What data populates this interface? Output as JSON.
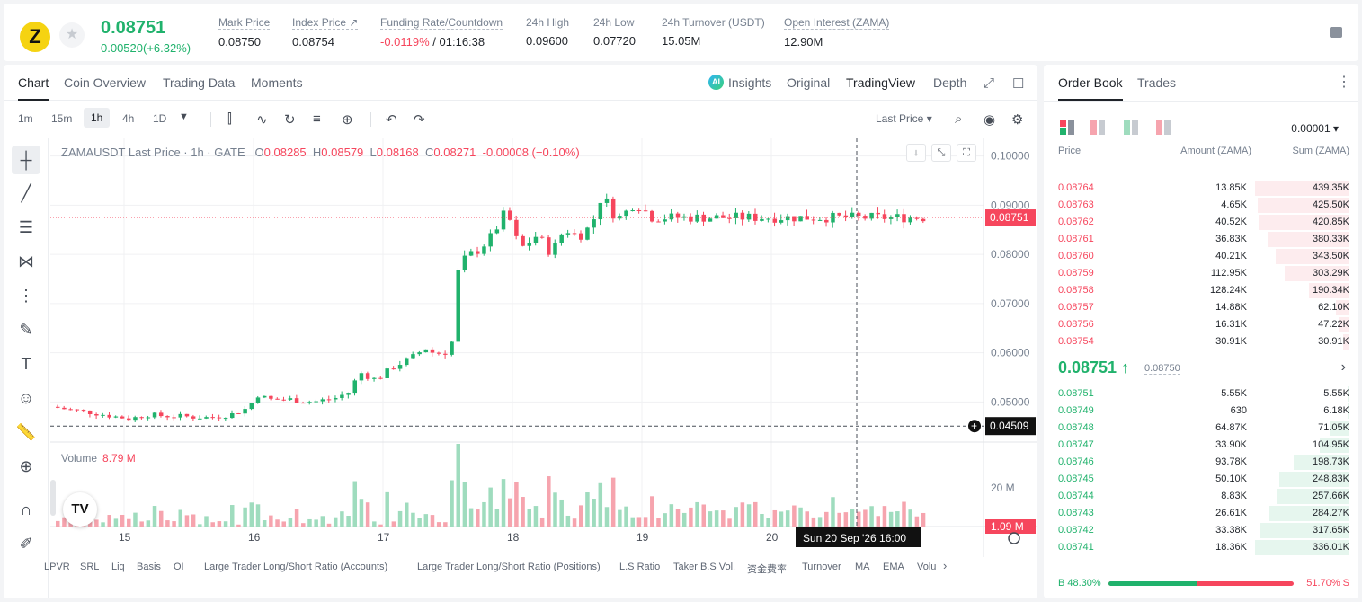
{
  "header": {
    "logo_letter": "Z",
    "last_price": "0.08751",
    "change": "0.00520(+6.32%)",
    "stats": [
      {
        "label": "Mark Price",
        "value": "0.08750"
      },
      {
        "label": "Index Price ↗",
        "value": "0.08754"
      },
      {
        "label": "Funding Rate/Countdown",
        "value_neg": "-0.0119%",
        "value": " / 01:16:38"
      },
      {
        "label": "24h High",
        "value": "0.09600"
      },
      {
        "label": "24h Low",
        "value": "0.07720"
      },
      {
        "label": "24h Turnover (USDT)",
        "value": "15.05M"
      },
      {
        "label": "Open Interest (ZAMA)",
        "value": "12.90M"
      }
    ]
  },
  "chart_tabs": [
    "Chart",
    "Coin Overview",
    "Trading Data",
    "Moments"
  ],
  "view_tabs": [
    "Insights",
    "Original",
    "TradingView",
    "Depth"
  ],
  "ai_badge": "AI",
  "timeframes": [
    "1m",
    "15m",
    "1h",
    "4h",
    "1D"
  ],
  "price_type": "Last Price ▾",
  "ohlc": {
    "title": "ZAMAUSDT Last Price · 1h · GATE",
    "o_lbl": "O",
    "o": "0.08285",
    "h_lbl": "H",
    "h": "0.08579",
    "l_lbl": "L",
    "l": "0.08168",
    "c_lbl": "C",
    "c": "0.08271",
    "chg": "-0.00008 (−0.10%)"
  },
  "volume": {
    "label": "Volume",
    "value": "8.79 M",
    "axis_label": "20 M",
    "tag": "1.09 M"
  },
  "tv_logo": "TV",
  "bottom_indicators": [
    "LPVR",
    "SRL",
    "Liq",
    "Basis",
    "OI",
    "Large Trader Long/Short Ratio (Accounts)",
    "Large Trader Long/Short Ratio (Positions)",
    "L.S Ratio",
    "Taker B.S Vol.",
    "资金费率",
    "Turnover",
    "MA",
    "EMA",
    "Volu"
  ],
  "chart_data": {
    "type": "candlestick",
    "title": "ZAMAUSDT Last Price · 1h · GATE",
    "x_ticks": [
      "15",
      "16",
      "17",
      "18",
      "19",
      "20"
    ],
    "y_ticks": [
      "0.10000",
      "0.09000",
      "0.08000",
      "0.07000",
      "0.06000",
      "0.05000"
    ],
    "ylim": [
      0.0433,
      0.1025
    ],
    "last_price_tag": "0.08751",
    "crosshair_price_tag": "0.04509",
    "crosshair_time": "Sun 20 Sep '26   16:00",
    "colors": {
      "up": "#20b26c",
      "down": "#f6465d",
      "up_vol": "#9fdcbe",
      "down_vol": "#f6a4ae"
    },
    "anchors": [
      [
        0,
        0.049
      ],
      [
        20,
        0.0484
      ],
      [
        45,
        0.0478
      ],
      [
        70,
        0.047
      ],
      [
        88,
        0.0466
      ],
      [
        105,
        0.0474
      ],
      [
        120,
        0.0472
      ],
      [
        150,
        0.047
      ],
      [
        175,
        0.0468
      ],
      [
        200,
        0.0475
      ],
      [
        218,
        0.0488
      ],
      [
        228,
        0.0515
      ],
      [
        240,
        0.0505
      ],
      [
        265,
        0.0505
      ],
      [
        290,
        0.05
      ],
      [
        315,
        0.0508
      ],
      [
        330,
        0.052
      ],
      [
        342,
        0.056
      ],
      [
        360,
        0.0545
      ],
      [
        380,
        0.0572
      ],
      [
        400,
        0.059
      ],
      [
        415,
        0.061
      ],
      [
        425,
        0.0598
      ],
      [
        440,
        0.0602
      ],
      [
        445,
        0.0625
      ],
      [
        450,
        0.0758
      ],
      [
        460,
        0.0795
      ],
      [
        475,
        0.081
      ],
      [
        490,
        0.084
      ],
      [
        505,
        0.089
      ],
      [
        520,
        0.081
      ],
      [
        540,
        0.084
      ],
      [
        555,
        0.08
      ],
      [
        565,
        0.084
      ],
      [
        575,
        0.085
      ],
      [
        585,
        0.0835
      ],
      [
        600,
        0.086
      ],
      [
        612,
        0.0925
      ],
      [
        622,
        0.0885
      ],
      [
        632,
        0.0875
      ],
      [
        648,
        0.0905
      ],
      [
        658,
        0.0892
      ],
      [
        664,
        0.0878
      ],
      [
        668,
        0.0875
      ]
    ],
    "candle_count": 135,
    "volume_max": 20.0
  },
  "orderbook": {
    "tabs": [
      "Order Book",
      "Trades"
    ],
    "precision": "0.00001 ▾",
    "headers": {
      "price": "Price",
      "amount": "Amount (ZAMA)",
      "sum": "Sum (ZAMA)"
    },
    "asks": [
      {
        "price": "0.08764",
        "amount": "13.85K",
        "sum": "439.35K",
        "depth": 1.0
      },
      {
        "price": "0.08763",
        "amount": "4.65K",
        "sum": "425.50K",
        "depth": 0.97
      },
      {
        "price": "0.08762",
        "amount": "40.52K",
        "sum": "420.85K",
        "depth": 0.96
      },
      {
        "price": "0.08761",
        "amount": "36.83K",
        "sum": "380.33K",
        "depth": 0.87
      },
      {
        "price": "0.08760",
        "amount": "40.21K",
        "sum": "343.50K",
        "depth": 0.78
      },
      {
        "price": "0.08759",
        "amount": "112.95K",
        "sum": "303.29K",
        "depth": 0.69
      },
      {
        "price": "0.08758",
        "amount": "128.24K",
        "sum": "190.34K",
        "depth": 0.43
      },
      {
        "price": "0.08757",
        "amount": "14.88K",
        "sum": "62.10K",
        "depth": 0.14
      },
      {
        "price": "0.08756",
        "amount": "16.31K",
        "sum": "47.22K",
        "depth": 0.11
      },
      {
        "price": "0.08754",
        "amount": "30.91K",
        "sum": "30.91K",
        "depth": 0.07
      }
    ],
    "mid": {
      "price": "0.08751 ↑",
      "mark": "0.08750"
    },
    "bids": [
      {
        "price": "0.08751",
        "amount": "5.55K",
        "sum": "5.55K",
        "depth": 0.02
      },
      {
        "price": "0.08749",
        "amount": "630",
        "sum": "6.18K",
        "depth": 0.02
      },
      {
        "price": "0.08748",
        "amount": "64.87K",
        "sum": "71.05K",
        "depth": 0.21
      },
      {
        "price": "0.08747",
        "amount": "33.90K",
        "sum": "104.95K",
        "depth": 0.31
      },
      {
        "price": "0.08746",
        "amount": "93.78K",
        "sum": "198.73K",
        "depth": 0.59
      },
      {
        "price": "0.08745",
        "amount": "50.10K",
        "sum": "248.83K",
        "depth": 0.74
      },
      {
        "price": "0.08744",
        "amount": "8.83K",
        "sum": "257.66K",
        "depth": 0.77
      },
      {
        "price": "0.08743",
        "amount": "26.61K",
        "sum": "284.27K",
        "depth": 0.85
      },
      {
        "price": "0.08742",
        "amount": "33.38K",
        "sum": "317.65K",
        "depth": 0.95
      },
      {
        "price": "0.08741",
        "amount": "18.36K",
        "sum": "336.01K",
        "depth": 1.0
      }
    ],
    "ratio": {
      "buy": "B 48.30%",
      "sell": "51.70% S",
      "buy_frac": 0.483
    }
  }
}
